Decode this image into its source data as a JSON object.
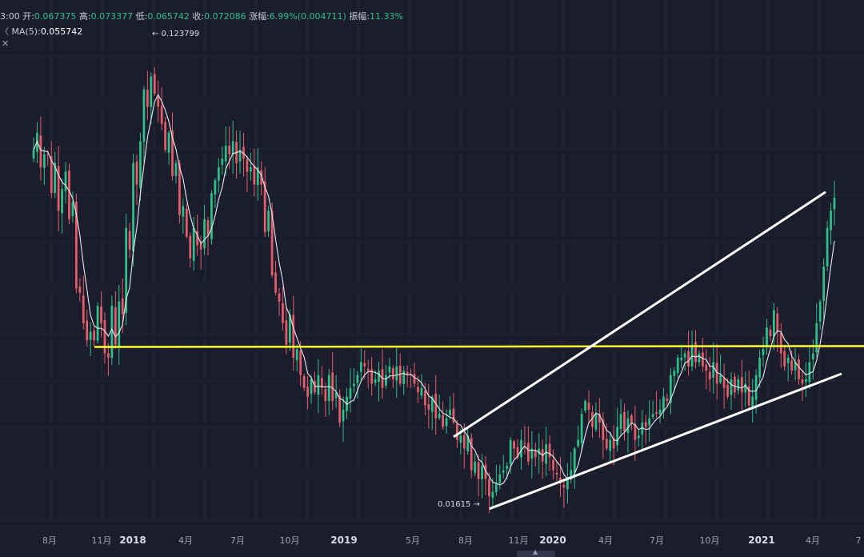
{
  "header": {
    "time_fragment": "3:00",
    "open_label": "开:",
    "open_value": "0.067375",
    "high_label": "高:",
    "high_value": "0.073377",
    "low_label": "低:",
    "low_value": "0.065742",
    "close_label": "收:",
    "close_value": "0.072086",
    "change_label": "涨幅:",
    "change_value": "6.99%(0.004711)",
    "amplitude_label": "振幅:",
    "amplitude_value": "11.33%",
    "ma_label": "MA(5):",
    "ma_value": "0.055742",
    "collapse_glyph": "〈"
  },
  "colors": {
    "background": "#1b1c2c",
    "up": "#2fbf8a",
    "down": "#e35d6a",
    "ma_line": "#e8e8ee",
    "support_line": "#ffff33",
    "trend_lines": "#ffffff",
    "axis_text": "#9da2b3",
    "grid": "#262839"
  },
  "chart_data": {
    "type": "candlestick",
    "timeframe": "weekly",
    "grid": true,
    "x_axis_labels": [
      "8月",
      "11月",
      "2018",
      "4月",
      "7月",
      "10月",
      "2019",
      "5月",
      "8月",
      "11月",
      "2020",
      "4月",
      "7月",
      "10月",
      "2021",
      "4月",
      "7"
    ],
    "y_axis_visible": false,
    "annotations": [
      {
        "text": "← 0.123799",
        "meaning": "period high"
      },
      {
        "text": "0.01615 →",
        "meaning": "period low"
      }
    ],
    "overlays": [
      {
        "type": "horizontal_line",
        "color": "#ffff33",
        "value": 0.0525
      },
      {
        "type": "channel_upper",
        "color": "#ffffff",
        "points": [
          [
            0.0326,
            0.0317
          ],
          [
            0.0888,
            0.0883
          ]
        ]
      },
      {
        "type": "channel_lower",
        "color": "#ffffff",
        "points": [
          [
            0.0151,
            0.0151
          ],
          [
            0.0463,
            0.0463
          ]
        ]
      }
    ],
    "ma_period": 5,
    "close_profile": [
      0.098,
      0.102,
      0.094,
      0.097,
      0.097,
      0.088,
      0.095,
      0.084,
      0.089,
      0.093,
      0.082,
      0.086,
      0.066,
      0.065,
      0.058,
      0.054,
      0.056,
      0.054,
      0.062,
      0.058,
      0.051,
      0.05,
      0.062,
      0.053,
      0.063,
      0.06,
      0.08,
      0.075,
      0.095,
      0.09,
      0.1,
      0.112,
      0.108,
      0.115,
      0.111,
      0.108,
      0.104,
      0.098,
      0.102,
      0.092,
      0.095,
      0.083,
      0.085,
      0.078,
      0.073,
      0.08,
      0.076,
      0.075,
      0.082,
      0.078,
      0.088,
      0.091,
      0.094,
      0.096,
      0.099,
      0.097,
      0.1,
      0.095,
      0.098,
      0.096,
      0.093,
      0.094,
      0.09,
      0.094,
      0.09,
      0.079,
      0.084,
      0.069,
      0.065,
      0.063,
      0.058,
      0.053,
      0.06,
      0.05,
      0.052,
      0.046,
      0.043,
      0.041,
      0.045,
      0.042,
      0.046,
      0.043,
      0.04,
      0.046,
      0.04,
      0.042,
      0.035,
      0.038,
      0.041,
      0.043,
      0.044,
      0.046,
      0.049,
      0.048,
      0.047,
      0.044,
      0.045,
      0.047,
      0.043,
      0.046,
      0.048,
      0.045,
      0.048,
      0.044,
      0.047,
      0.046,
      0.046,
      0.044,
      0.042,
      0.043,
      0.039,
      0.038,
      0.041,
      0.036,
      0.037,
      0.034,
      0.036,
      0.038,
      0.035,
      0.031,
      0.032,
      0.029,
      0.032,
      0.024,
      0.026,
      0.022,
      0.025,
      0.022,
      0.018,
      0.019,
      0.021,
      0.023,
      0.024,
      0.025,
      0.031,
      0.029,
      0.027,
      0.031,
      0.03,
      0.026,
      0.029,
      0.027,
      0.029,
      0.026,
      0.03,
      0.027,
      0.024,
      0.023,
      0.021,
      0.02,
      0.022,
      0.024,
      0.029,
      0.031,
      0.037,
      0.04,
      0.038,
      0.034,
      0.037,
      0.035,
      0.031,
      0.029,
      0.031,
      0.029,
      0.034,
      0.037,
      0.033,
      0.036,
      0.035,
      0.031,
      0.032,
      0.035,
      0.034,
      0.036,
      0.037,
      0.037,
      0.038,
      0.041,
      0.04,
      0.046,
      0.047,
      0.05,
      0.05,
      0.051,
      0.048,
      0.053,
      0.049,
      0.051,
      0.048,
      0.047,
      0.045,
      0.049,
      0.044,
      0.046,
      0.043,
      0.041,
      0.045,
      0.042,
      0.045,
      0.042,
      0.044,
      0.039,
      0.041,
      0.046,
      0.05,
      0.052,
      0.057,
      0.055,
      0.061,
      0.056,
      0.051,
      0.048,
      0.05,
      0.047,
      0.049,
      0.045,
      0.044,
      0.045,
      0.049,
      0.051,
      0.058,
      0.063,
      0.071,
      0.08,
      0.084,
      0.087
    ]
  }
}
